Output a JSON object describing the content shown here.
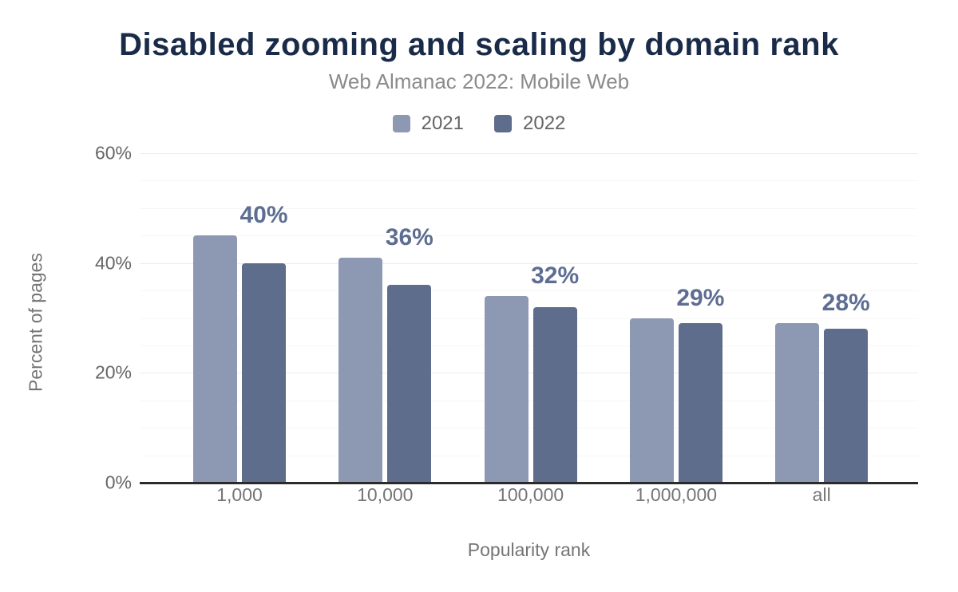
{
  "chart_data": {
    "type": "bar",
    "title": "Disabled zooming and scaling by domain rank",
    "subtitle": "Web Almanac 2022: Mobile Web",
    "xlabel": "Popularity rank",
    "ylabel": "Percent of pages",
    "categories": [
      "1,000",
      "10,000",
      "100,000",
      "1,000,000",
      "all"
    ],
    "series": [
      {
        "name": "2021",
        "color": "#8d99b2",
        "values": [
          45,
          41,
          34,
          30,
          29
        ]
      },
      {
        "name": "2022",
        "color": "#5d6d8b",
        "values": [
          40,
          36,
          32,
          29,
          28
        ]
      }
    ],
    "data_labels": [
      "40%",
      "36%",
      "32%",
      "29%",
      "28%"
    ],
    "data_labels_for_series": "2022",
    "ylim": [
      0,
      60
    ],
    "ytick_percents": [
      0,
      20,
      40,
      60
    ],
    "ytick_labels": [
      "0%",
      "20%",
      "40%",
      "60%"
    ],
    "grid": "horizontal, minor every 5%, major every 20%",
    "legend_position": "top-center"
  },
  "colors": {
    "title": "#1a2b49",
    "subtitle": "#8b8b8b",
    "axis_text": "#757575",
    "tick_text": "#666666",
    "data_label": "#5d6e92",
    "axis_line": "#2b2b2b",
    "grid_major": "#ececec",
    "grid_minor": "#f7f7f8",
    "series_2021": "#8d99b2",
    "series_2022": "#5d6d8b"
  }
}
